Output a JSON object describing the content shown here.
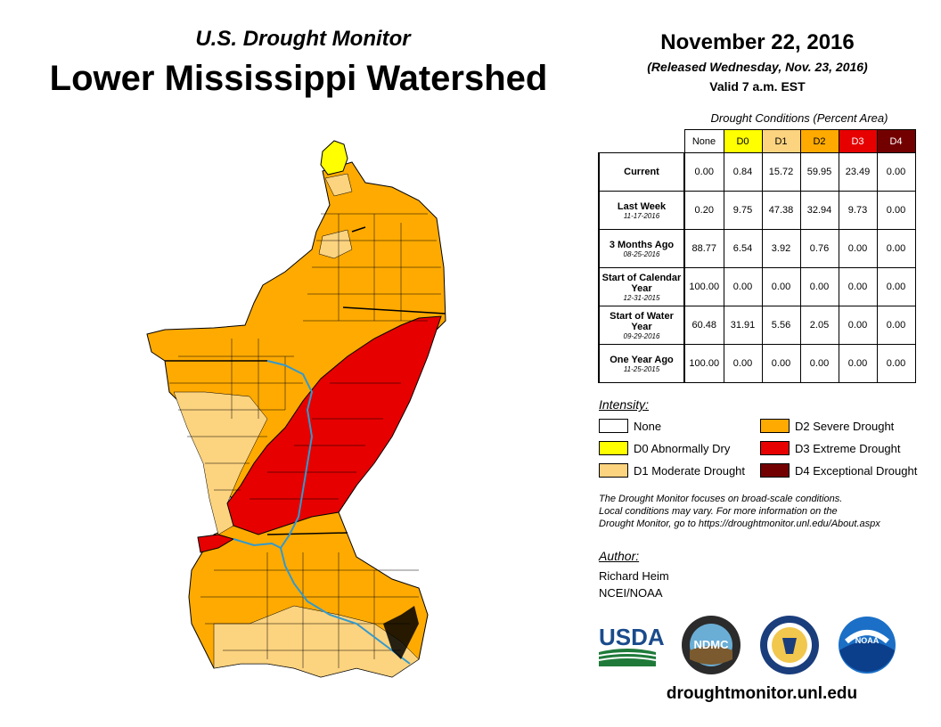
{
  "header": {
    "series": "U.S. Drought Monitor",
    "region": "Lower Mississippi Watershed",
    "date": "November 22, 2016",
    "released": "(Released Wednesday, Nov. 23, 2016)",
    "valid": "Valid 7 a.m. EST"
  },
  "table": {
    "caption": "Drought Conditions (Percent Area)",
    "columns": [
      "None",
      "D0",
      "D1",
      "D2",
      "D3",
      "D4"
    ],
    "column_colors": [
      "#ffffff",
      "#ffff00",
      "#fcd37f",
      "#ffaa00",
      "#e60000",
      "#730000"
    ],
    "rows": [
      {
        "label": "Current",
        "date": "",
        "values": [
          "0.00",
          "0.84",
          "15.72",
          "59.95",
          "23.49",
          "0.00"
        ]
      },
      {
        "label": "Last Week",
        "date": "11-17-2016",
        "values": [
          "0.20",
          "9.75",
          "47.38",
          "32.94",
          "9.73",
          "0.00"
        ]
      },
      {
        "label": "3 Months Ago",
        "date": "08-25-2016",
        "values": [
          "88.77",
          "6.54",
          "3.92",
          "0.76",
          "0.00",
          "0.00"
        ]
      },
      {
        "label": "Start of Calendar Year",
        "date": "12-31-2015",
        "values": [
          "100.00",
          "0.00",
          "0.00",
          "0.00",
          "0.00",
          "0.00"
        ]
      },
      {
        "label": "Start of Water Year",
        "date": "09-29-2016",
        "values": [
          "60.48",
          "31.91",
          "5.56",
          "2.05",
          "0.00",
          "0.00"
        ]
      },
      {
        "label": "One Year Ago",
        "date": "11-25-2015",
        "values": [
          "100.00",
          "0.00",
          "0.00",
          "0.00",
          "0.00",
          "0.00"
        ]
      }
    ]
  },
  "legend": {
    "title": "Intensity:",
    "items": [
      {
        "label": "None",
        "color": "#ffffff"
      },
      {
        "label": "D0 Abnormally Dry",
        "color": "#ffff00"
      },
      {
        "label": "D1 Moderate Drought",
        "color": "#fcd37f"
      },
      {
        "label": "D2 Severe Drought",
        "color": "#ffaa00"
      },
      {
        "label": "D3 Extreme Drought",
        "color": "#e60000"
      },
      {
        "label": "D4 Exceptional Drought",
        "color": "#730000"
      }
    ]
  },
  "note": {
    "line1": "The Drought Monitor focuses on broad-scale conditions.",
    "line2": "Local conditions may vary. For more information on the",
    "line3": "Drought Monitor, go to https://droughtmonitor.unl.edu/About.aspx"
  },
  "author": {
    "label": "Author:",
    "name": "Richard Heim",
    "org": "NCEI/NOAA"
  },
  "logos": {
    "usda": "USDA",
    "ndmc": "NDMC",
    "noaa": "NOAA"
  },
  "website": "droughtmonitor.unl.edu"
}
